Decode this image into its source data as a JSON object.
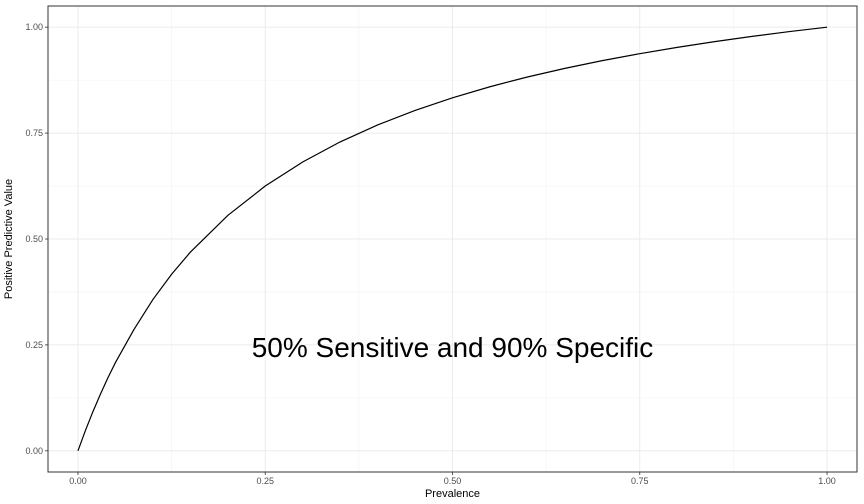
{
  "chart_data": {
    "type": "line",
    "title": "",
    "xlabel": "Prevalence",
    "ylabel": "Positive Predictive Value",
    "xlim": [
      -0.04,
      1.04
    ],
    "ylim": [
      -0.05,
      1.05
    ],
    "grid": true,
    "x_ticks": [
      0,
      0.25,
      0.5,
      0.75,
      1
    ],
    "x_tick_labels": [
      "0.00",
      "0.25",
      "0.50",
      "0.75",
      "1.00"
    ],
    "y_ticks": [
      0,
      0.25,
      0.5,
      0.75,
      1
    ],
    "y_tick_labels": [
      "0.00",
      "0.25",
      "0.50",
      "0.75",
      "1.00"
    ],
    "annotation": "50% Sensitive and 90% Specific",
    "annotation_at": [
      0.5,
      0.245
    ],
    "series": [
      {
        "x": [
          0,
          0.01,
          0.02,
          0.03,
          0.04,
          0.05,
          0.075,
          0.1,
          0.125,
          0.15,
          0.2,
          0.25,
          0.3,
          0.35,
          0.4,
          0.45,
          0.5,
          0.55,
          0.6,
          0.65,
          0.7,
          0.75,
          0.8,
          0.85,
          0.9,
          0.95,
          1
        ],
        "y": [
          0,
          0.0481,
          0.0926,
          0.1339,
          0.1724,
          0.2083,
          0.2872,
          0.3571,
          0.4167,
          0.4689,
          0.5556,
          0.625,
          0.6818,
          0.7292,
          0.7692,
          0.8036,
          0.8333,
          0.8594,
          0.8824,
          0.9028,
          0.9211,
          0.9375,
          0.9524,
          0.9659,
          0.9783,
          0.9896,
          1
        ]
      }
    ],
    "colors": {
      "background": "#ffffff",
      "panel_border": "#333333",
      "grid_major": "#ebebeb",
      "grid_minor": "#f2f2f2",
      "line": "#000000"
    }
  }
}
